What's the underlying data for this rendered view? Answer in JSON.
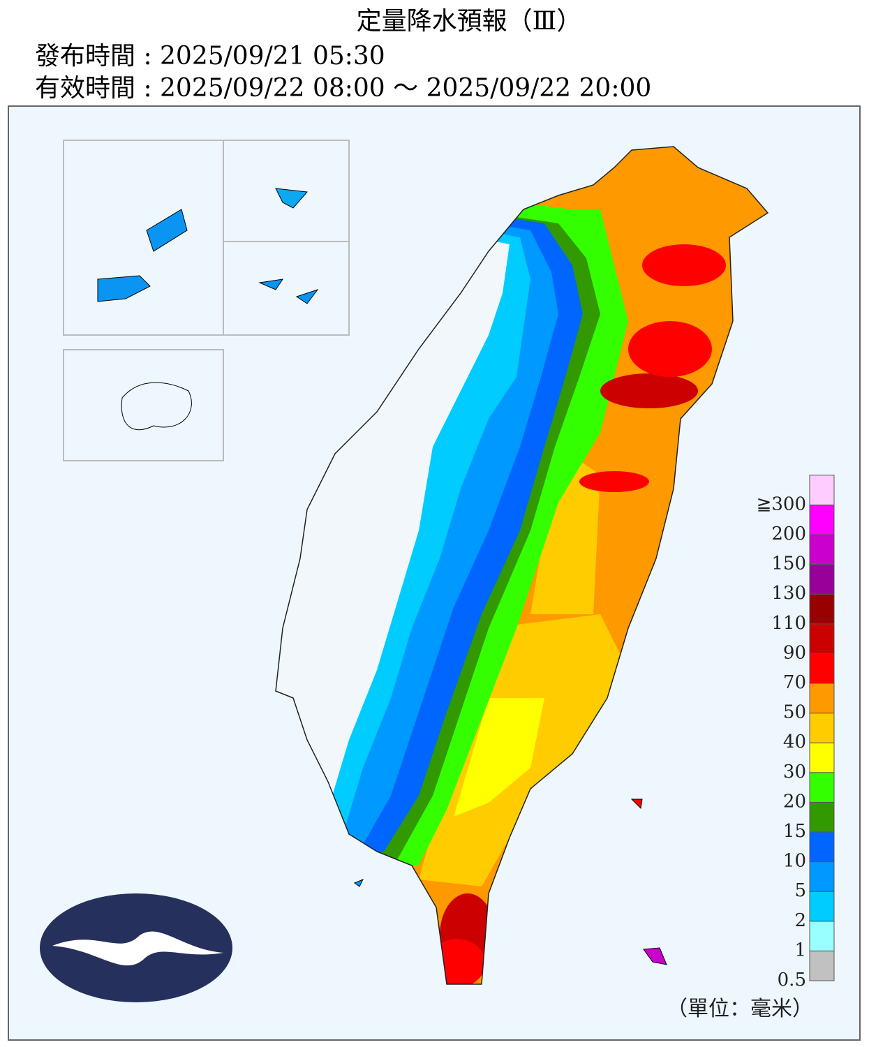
{
  "header": {
    "title": "定量降水預報（Ⅲ）",
    "issued": "發布時間 : 2025/09/21 05:30",
    "valid": "有效時間 : 2025/09/22 08:00 ～ 2025/09/22 20:00"
  },
  "legend": {
    "unit": "（單位：毫米）",
    "items": [
      {
        "label": "0.5",
        "color": "#c1c1c1"
      },
      {
        "label": "1",
        "color": "#99ffff"
      },
      {
        "label": "2",
        "color": "#00ccff"
      },
      {
        "label": "5",
        "color": "#0099ff"
      },
      {
        "label": "10",
        "color": "#0066ff"
      },
      {
        "label": "15",
        "color": "#339900"
      },
      {
        "label": "20",
        "color": "#33ff00"
      },
      {
        "label": "30",
        "color": "#ffff00"
      },
      {
        "label": "40",
        "color": "#ffcc00"
      },
      {
        "label": "50",
        "color": "#ff9900"
      },
      {
        "label": "70",
        "color": "#ff0000"
      },
      {
        "label": "90",
        "color": "#cc0000"
      },
      {
        "label": "110",
        "color": "#990000"
      },
      {
        "label": "130",
        "color": "#990099"
      },
      {
        "label": "150",
        "color": "#cc00cc"
      },
      {
        "label": "200",
        "color": "#ff00ff"
      },
      {
        "label": "≧300",
        "color": "#ffccff"
      }
    ]
  }
}
